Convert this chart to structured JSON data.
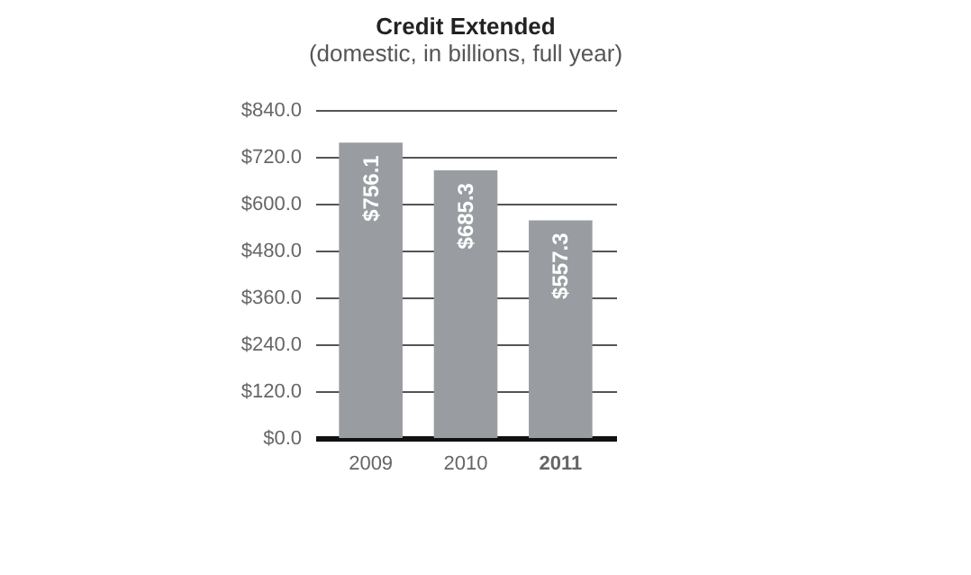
{
  "chart_data": {
    "type": "bar",
    "title": "Credit Extended",
    "subtitle": "(domestic, in billions, full year)",
    "categories": [
      "2009",
      "2010",
      "2011"
    ],
    "values": [
      756.1,
      685.3,
      557.3
    ],
    "value_labels": [
      "$756.1",
      "$685.3",
      "$557.3"
    ],
    "color": "#999da1",
    "ylim": [
      0,
      840
    ],
    "yticks": [
      {
        "value": 0,
        "label": "$0.0"
      },
      {
        "value": 120,
        "label": "$120.0"
      },
      {
        "value": 240,
        "label": "$240.0"
      },
      {
        "value": 360,
        "label": "$360.0"
      },
      {
        "value": 480,
        "label": "$480.0"
      },
      {
        "value": 600,
        "label": "$600.0"
      },
      {
        "value": 720,
        "label": "$720.0"
      },
      {
        "value": 840,
        "label": "$840.0"
      }
    ],
    "grid": "y"
  }
}
